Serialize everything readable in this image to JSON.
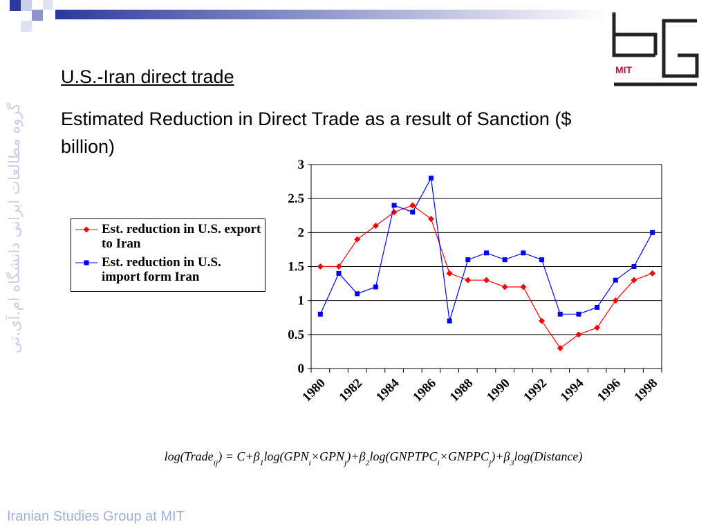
{
  "title": "U.S.-Iran direct trade",
  "side_text": "گروه مطالعات ایرانی دانشگاه ام.آی.تی",
  "footer": "Iranian Studies Group at MIT",
  "logo_text": "MIT",
  "formula": [
    "log(Trade",
    "ij",
    ") = C+β",
    "1",
    "log(GPN",
    "i",
    "×GPN",
    "j",
    ")+β",
    "2",
    "log(GNPTPC",
    "i",
    "×GNPPC",
    "j",
    ")+β",
    "3",
    "log(Distance)"
  ],
  "chart_data": {
    "type": "line",
    "title": "Estimated Reduction in Direct Trade as a result of Sanction ($ billion)",
    "categories": [
      "1980",
      null,
      "1982",
      null,
      "1984",
      null,
      "1986",
      null,
      "1988",
      null,
      "1990",
      null,
      "1992",
      null,
      "1994",
      null,
      "1996",
      null,
      "1998"
    ],
    "series": [
      {
        "name": "Est. reduction in U.S. export to Iran",
        "color": "#ff0000",
        "marker": "diamond",
        "values": [
          1.5,
          1.5,
          1.9,
          2.1,
          2.3,
          2.4,
          2.2,
          1.4,
          1.3,
          1.3,
          1.2,
          1.2,
          0.7,
          0.3,
          0.5,
          0.6,
          1.0,
          1.3,
          1.4
        ]
      },
      {
        "name": "Est. reduction in U.S. import form Iran",
        "color": "#0000ff",
        "marker": "square",
        "values": [
          0.8,
          1.4,
          1.1,
          1.2,
          2.4,
          2.3,
          2.8,
          0.7,
          1.6,
          1.7,
          1.6,
          1.7,
          1.6,
          0.8,
          0.8,
          0.9,
          1.3,
          1.5,
          2.0
        ]
      }
    ],
    "ylim": [
      0,
      3
    ],
    "yticks": [
      0,
      0.5,
      1,
      1.5,
      2,
      2.5,
      3
    ],
    "grid": true,
    "legend": "left"
  }
}
